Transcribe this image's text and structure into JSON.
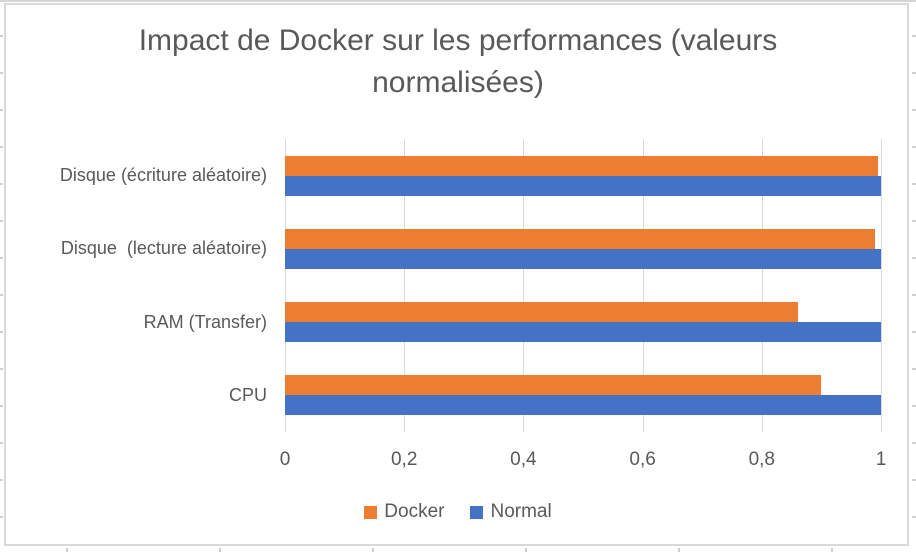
{
  "chart_data": {
    "type": "bar",
    "orientation": "horizontal",
    "title": "Impact de Docker sur les performances (valeurs normalisées)",
    "categories_order": "top-to-bottom",
    "categories": [
      "Disque (écriture aléatoire)",
      "Disque  (lecture aléatoire)",
      "RAM (Transfer)",
      "CPU"
    ],
    "series": [
      {
        "name": "Docker",
        "color": "#ED7D31",
        "values": [
          0.995,
          0.99,
          0.86,
          0.9
        ]
      },
      {
        "name": "Normal",
        "color": "#4472C4",
        "values": [
          1.0,
          1.0,
          1.0,
          1.0
        ]
      }
    ],
    "xlim": [
      0,
      1
    ],
    "x_ticks": [
      "0",
      "0,2",
      "0,4",
      "0,6",
      "0,8",
      "1"
    ],
    "grid": true,
    "legend_position": "bottom",
    "colors": {
      "text": "#595959",
      "gridline": "#D9D9D9",
      "chart_border": "#D9D9D9",
      "background": "#FFFFFF"
    }
  }
}
